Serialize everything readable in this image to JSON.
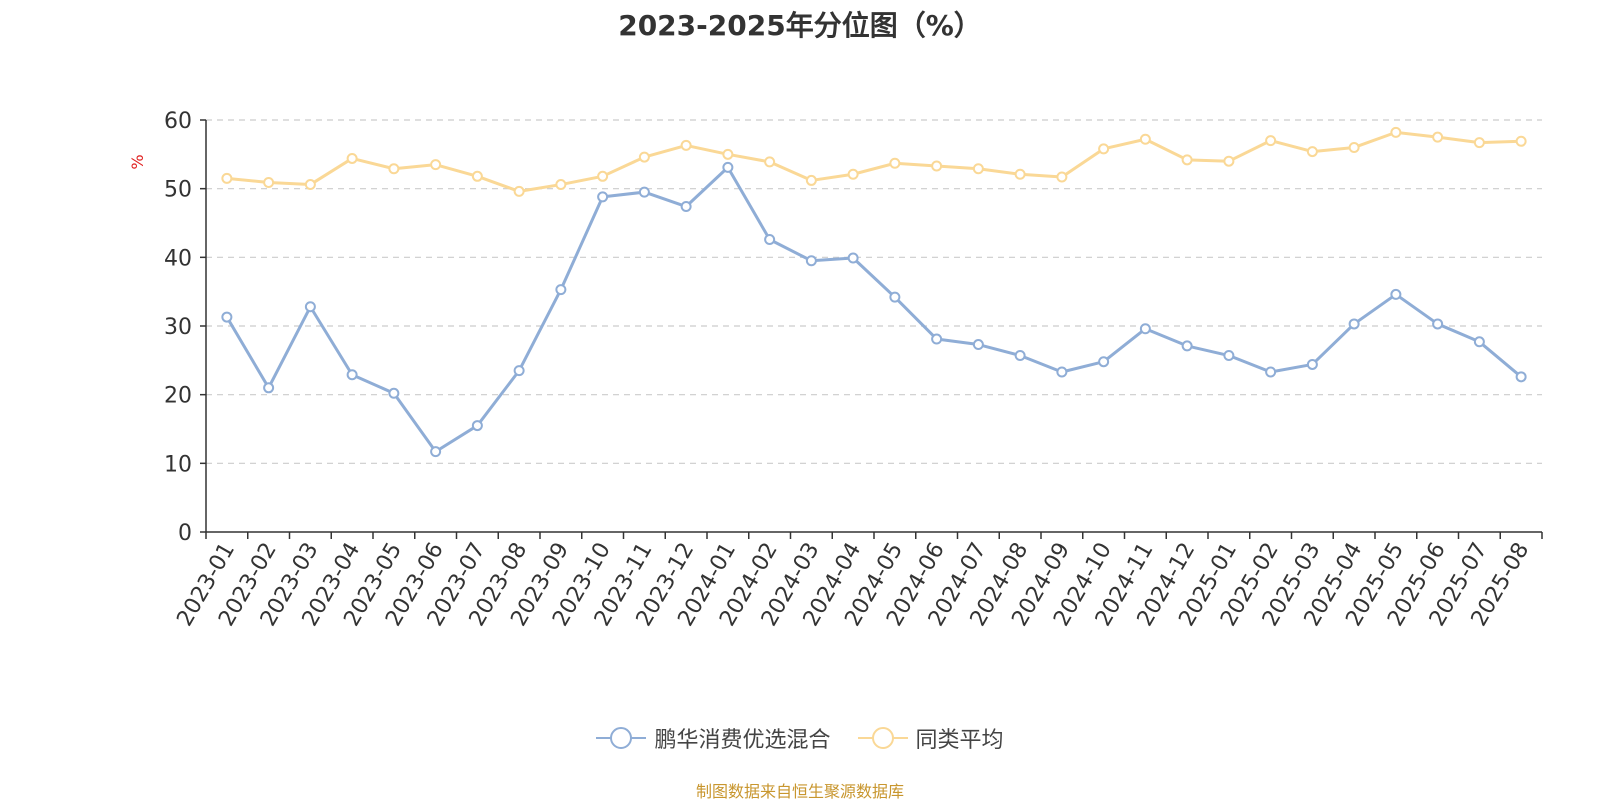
{
  "chart_data": {
    "type": "line",
    "title": "2023-2025年分位图（%）",
    "ylabel": "%",
    "xlabel": "",
    "ylim": [
      0,
      60
    ],
    "yticks": [
      0,
      10,
      20,
      30,
      40,
      50,
      60
    ],
    "grid": true,
    "legend_position": "bottom",
    "categories": [
      "2023-01",
      "2023-02",
      "2023-03",
      "2023-04",
      "2023-05",
      "2023-06",
      "2023-07",
      "2023-08",
      "2023-09",
      "2023-10",
      "2023-11",
      "2023-12",
      "2024-01",
      "2024-02",
      "2024-03",
      "2024-04",
      "2024-05",
      "2024-06",
      "2024-07",
      "2024-08",
      "2024-09",
      "2024-10",
      "2024-11",
      "2024-12",
      "2025-01",
      "2025-02",
      "2025-03",
      "2025-04",
      "2025-05",
      "2025-06",
      "2025-07",
      "2025-08"
    ],
    "series": [
      {
        "name": "鹏华消费优选混合",
        "color": "#8fadd6",
        "values": [
          31.3,
          21.0,
          32.8,
          22.9,
          20.2,
          11.7,
          15.5,
          23.5,
          35.3,
          48.8,
          49.5,
          47.4,
          53.1,
          42.6,
          39.5,
          39.9,
          34.2,
          28.1,
          27.3,
          25.7,
          23.3,
          24.8,
          29.6,
          27.1,
          25.7,
          23.3,
          24.4,
          30.3,
          34.6,
          30.3,
          27.7,
          22.6
        ]
      },
      {
        "name": "同类平均",
        "color": "#fad896",
        "values": [
          51.5,
          50.9,
          50.6,
          54.4,
          52.9,
          53.5,
          51.8,
          49.6,
          50.6,
          51.8,
          54.6,
          56.3,
          55.0,
          53.9,
          51.2,
          52.1,
          53.7,
          53.3,
          52.9,
          52.1,
          51.7,
          55.8,
          57.2,
          54.2,
          54.0,
          57.0,
          55.4,
          56.0,
          58.2,
          57.5,
          56.7,
          56.9
        ]
      }
    ]
  },
  "source_note": "制图数据来自恒生聚源数据库"
}
